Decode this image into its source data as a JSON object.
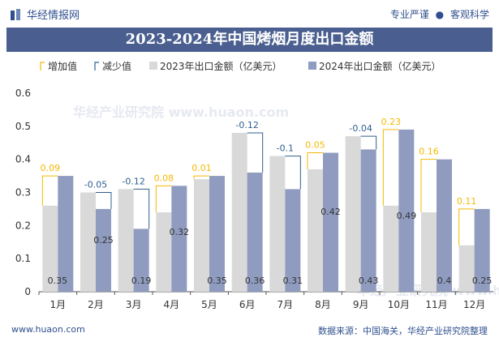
{
  "header": {
    "brand": "华经情报网",
    "slogan_left": "专业严谨",
    "slogan_dot": "●",
    "slogan_right": "客观科学"
  },
  "footer": {
    "website": "www.huaon.com",
    "source": "数据来源：中国海关，华经产业研究院整理"
  },
  "watermark": "华经产业研究院  www.huaon.com",
  "colors": {
    "bar2023": "#d9d9d9",
    "bar2024": "#8f9cc0",
    "increase": "#f5b800",
    "decrease": "#2f5f8f",
    "title_bg": "#4a5f8f"
  },
  "chart_data": {
    "type": "bar",
    "title": "2023-2024年中国烤烟月度出口金额",
    "categories": [
      "1月",
      "2月",
      "3月",
      "4月",
      "5月",
      "6月",
      "7月",
      "8月",
      "9月",
      "10月",
      "11月",
      "12月"
    ],
    "series": [
      {
        "name": "2023年出口金额（亿美元）",
        "values": [
          0.26,
          0.3,
          0.31,
          0.24,
          0.34,
          0.48,
          0.41,
          0.37,
          0.47,
          0.26,
          0.24,
          0.14
        ]
      },
      {
        "name": "2024年出口金额（亿美元）",
        "values": [
          0.35,
          0.25,
          0.19,
          0.32,
          0.35,
          0.36,
          0.31,
          0.42,
          0.43,
          0.49,
          0.4,
          0.25
        ]
      }
    ],
    "value_labels": [
      "0.35",
      "0.25",
      "0.19",
      "0.32",
      "0.35",
      "0.36",
      "0.31",
      "0.42",
      "0.43",
      "0.49",
      "0.4",
      "0.25"
    ],
    "changes": [
      0.09,
      -0.05,
      -0.12,
      0.08,
      0.01,
      -0.12,
      -0.1,
      0.05,
      -0.04,
      0.23,
      0.16,
      0.11
    ],
    "change_labels": [
      "0.09",
      "-0.05",
      "-0.12",
      "0.08",
      "0.01",
      "-0.12",
      "-0.1",
      "0.05",
      "-0.04",
      "0.23",
      "0.16",
      "0.11"
    ],
    "legend": {
      "increase": "增加值",
      "decrease": "减少值",
      "placement": "top-left"
    },
    "y_ticks": [
      "0",
      "0.1",
      "0.2",
      "0.3",
      "0.4",
      "0.5",
      "0.6"
    ],
    "ylim": [
      0,
      0.6
    ],
    "grid": false
  }
}
